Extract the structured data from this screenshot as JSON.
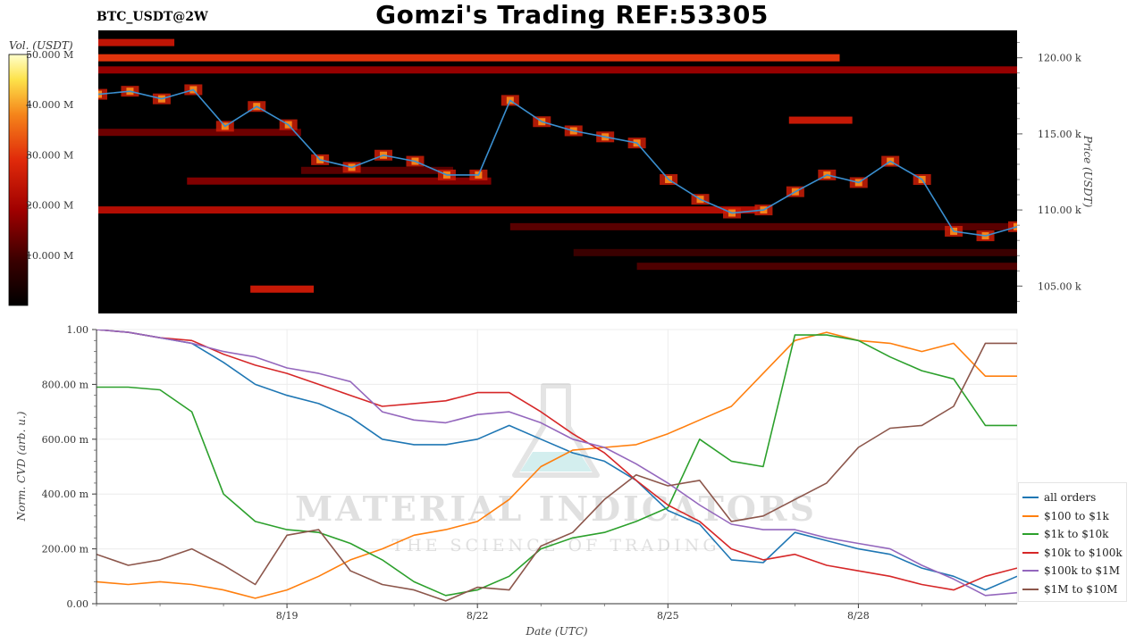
{
  "title": "Gomzi's Trading REF:53305",
  "symbol": "BTC_USDT@2W",
  "watermark": {
    "main": "MATERIAL INDICATORS",
    "sub": "THE SCIENCE OF TRADING"
  },
  "colors": {
    "heatmap_background": "#000000",
    "price_line": "#3a8fd0",
    "colorbar": [
      "#000000",
      "#5a0000",
      "#b00000",
      "#e83010",
      "#f5881a",
      "#fde84a",
      "#ffffcc"
    ]
  },
  "chart_data": [
    {
      "type": "heatmap",
      "ylabel": "Price (USDT)",
      "ylim": [
        103200,
        121800
      ],
      "ytick_values": [
        105000,
        110000,
        115000,
        120000
      ],
      "ytick_labels": [
        "105.00 k",
        "110.00 k",
        "115.00 k",
        "120.00 k"
      ],
      "colorbar_label": "Vol. (USDT)",
      "colorbar_range": [
        0,
        50000000
      ],
      "colorbar_tick_values": [
        10000000,
        20000000,
        30000000,
        40000000,
        50000000
      ],
      "colorbar_tick_labels": [
        "10.000 M",
        "20.000 M",
        "30.000 M",
        "40.000 M",
        "50.000 M"
      ],
      "price_series": {
        "days": [
          16.0,
          16.5,
          17.0,
          17.5,
          18.0,
          18.5,
          19.0,
          19.5,
          20.0,
          20.5,
          21.0,
          21.5,
          22.0,
          22.5,
          23.0,
          23.5,
          24.0,
          24.5,
          25.0,
          25.5,
          26.0,
          26.5,
          27.0,
          27.5,
          28.0,
          28.5,
          29.0,
          29.5,
          30.0,
          30.5
        ],
        "prices": [
          117600,
          117800,
          117300,
          117900,
          115500,
          116800,
          115600,
          113300,
          112800,
          113600,
          113200,
          112300,
          112300,
          117200,
          115800,
          115200,
          114800,
          114400,
          112000,
          110700,
          109800,
          110000,
          111200,
          112300,
          111800,
          113200,
          112000,
          108600,
          108300,
          108900
        ]
      },
      "liquidity_bands": [
        {
          "price": 120000,
          "start_day": 16.0,
          "end_day": 27.7,
          "volume": 30000000
        },
        {
          "price": 119200,
          "start_day": 16.0,
          "end_day": 30.5,
          "volume": 18000000
        },
        {
          "price": 121000,
          "start_day": 16.0,
          "end_day": 17.2,
          "volume": 24000000
        },
        {
          "price": 110000,
          "start_day": 16.0,
          "end_day": 26.4,
          "volume": 22000000
        },
        {
          "price": 108900,
          "start_day": 22.5,
          "end_day": 30.5,
          "volume": 12000000
        },
        {
          "price": 107200,
          "start_day": 23.5,
          "end_day": 30.5,
          "volume": 9000000
        },
        {
          "price": 106300,
          "start_day": 24.5,
          "end_day": 30.5,
          "volume": 11000000
        },
        {
          "price": 115900,
          "start_day": 26.9,
          "end_day": 27.9,
          "volume": 25000000
        },
        {
          "price": 104800,
          "start_day": 18.4,
          "end_day": 19.4,
          "volume": 25000000
        },
        {
          "price": 115100,
          "start_day": 16.0,
          "end_day": 19.2,
          "volume": 14000000
        },
        {
          "price": 112600,
          "start_day": 19.2,
          "end_day": 21.6,
          "volume": 12000000
        },
        {
          "price": 111900,
          "start_day": 17.4,
          "end_day": 22.2,
          "volume": 16000000
        }
      ]
    },
    {
      "type": "line",
      "xlabel": "Date (UTC)",
      "ylabel": "Norm. CVD (arb. u.)",
      "ylim": [
        0,
        1
      ],
      "ytick_values": [
        0,
        0.2,
        0.4,
        0.6,
        0.8,
        1.0
      ],
      "ytick_labels": [
        "0.00",
        "200.00 m",
        "400.00 m",
        "600.00 m",
        "800.00 m",
        "1.00"
      ],
      "xlim": [
        16.0,
        30.5
      ],
      "xtick_values": [
        19,
        22,
        25,
        28
      ],
      "xtick_labels": [
        "8/19",
        "8/22",
        "8/25",
        "8/28"
      ],
      "x": [
        16.0,
        16.5,
        17.0,
        17.5,
        18.0,
        18.5,
        19.0,
        19.5,
        20.0,
        20.5,
        21.0,
        21.5,
        22.0,
        22.5,
        23.0,
        23.5,
        24.0,
        24.5,
        25.0,
        25.5,
        26.0,
        26.5,
        27.0,
        27.5,
        28.0,
        28.5,
        29.0,
        29.5,
        30.0,
        30.5
      ],
      "series": [
        {
          "name": "all orders",
          "color": "#1f77b4",
          "values": [
            1.0,
            0.99,
            0.97,
            0.95,
            0.88,
            0.8,
            0.76,
            0.73,
            0.68,
            0.6,
            0.58,
            0.58,
            0.6,
            0.65,
            0.6,
            0.55,
            0.52,
            0.45,
            0.34,
            0.29,
            0.16,
            0.15,
            0.26,
            0.23,
            0.2,
            0.18,
            0.13,
            0.1,
            0.05,
            0.1
          ]
        },
        {
          "name": "$100 to $1k",
          "color": "#ff7f0e",
          "values": [
            0.08,
            0.07,
            0.08,
            0.07,
            0.05,
            0.02,
            0.05,
            0.1,
            0.16,
            0.2,
            0.25,
            0.27,
            0.3,
            0.38,
            0.5,
            0.56,
            0.57,
            0.58,
            0.62,
            0.67,
            0.72,
            0.84,
            0.96,
            0.99,
            0.96,
            0.95,
            0.92,
            0.95,
            0.83,
            0.83
          ]
        },
        {
          "name": "$1k to $10k",
          "color": "#2ca02c",
          "values": [
            0.79,
            0.79,
            0.78,
            0.7,
            0.4,
            0.3,
            0.27,
            0.26,
            0.22,
            0.16,
            0.08,
            0.03,
            0.05,
            0.1,
            0.2,
            0.24,
            0.26,
            0.3,
            0.35,
            0.6,
            0.52,
            0.5,
            0.98,
            0.98,
            0.96,
            0.9,
            0.85,
            0.82,
            0.65,
            0.65
          ]
        },
        {
          "name": "$10k to $100k",
          "color": "#d62728",
          "values": [
            1.0,
            0.99,
            0.97,
            0.96,
            0.91,
            0.87,
            0.84,
            0.8,
            0.76,
            0.72,
            0.73,
            0.74,
            0.77,
            0.77,
            0.7,
            0.62,
            0.55,
            0.45,
            0.36,
            0.3,
            0.2,
            0.16,
            0.18,
            0.14,
            0.12,
            0.1,
            0.07,
            0.05,
            0.1,
            0.13
          ]
        },
        {
          "name": "$100k to $1M",
          "color": "#9467bd",
          "values": [
            1.0,
            0.99,
            0.97,
            0.95,
            0.92,
            0.9,
            0.86,
            0.84,
            0.81,
            0.7,
            0.67,
            0.66,
            0.69,
            0.7,
            0.66,
            0.6,
            0.57,
            0.51,
            0.44,
            0.36,
            0.29,
            0.27,
            0.27,
            0.24,
            0.22,
            0.2,
            0.14,
            0.09,
            0.03,
            0.04
          ]
        },
        {
          "name": "$1M to $10M",
          "color": "#8c564b",
          "values": [
            0.18,
            0.14,
            0.16,
            0.2,
            0.14,
            0.07,
            0.25,
            0.27,
            0.12,
            0.07,
            0.05,
            0.01,
            0.06,
            0.05,
            0.21,
            0.26,
            0.38,
            0.47,
            0.43,
            0.45,
            0.3,
            0.32,
            0.38,
            0.44,
            0.57,
            0.64,
            0.65,
            0.72,
            0.95,
            0.95
          ]
        }
      ]
    }
  ]
}
